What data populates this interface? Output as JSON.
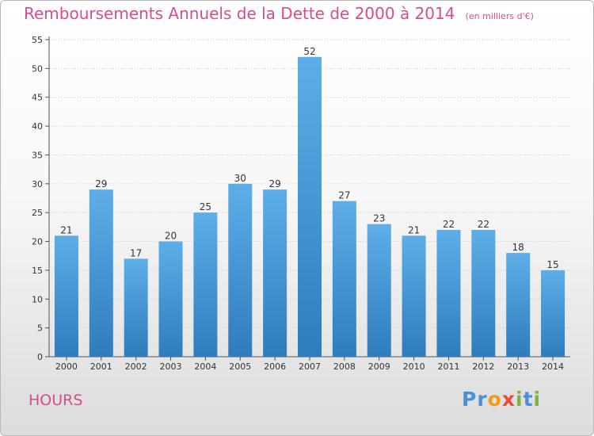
{
  "header": {
    "title": "Remboursements Annuels de la Dette de 2000 à 2014",
    "unit_note": "(en milliers d'€)"
  },
  "footer": {
    "commune": "HOURS",
    "logo_text": "Proxiti",
    "logo_letters": [
      {
        "ch": "P",
        "color": "#4a90d9"
      },
      {
        "ch": "r",
        "color": "#4a90d9"
      },
      {
        "ch": "o",
        "color": "#f39c12"
      },
      {
        "ch": "x",
        "color": "#e74c3c"
      },
      {
        "ch": "i",
        "color": "#7cb342"
      },
      {
        "ch": "t",
        "color": "#4a90d9"
      },
      {
        "ch": "i",
        "color": "#7cb342"
      }
    ]
  },
  "colors": {
    "bar_top": "#5daee8",
    "bar_bottom": "#2f7cbd",
    "grid": "#cccccc",
    "axis": "#555555",
    "accent": "#d44d8d"
  },
  "chart_data": {
    "type": "bar",
    "title": "Remboursements Annuels de la Dette de 2000 à 2014",
    "subtitle": "(en milliers d'€)",
    "categories": [
      "2000",
      "2001",
      "2002",
      "2003",
      "2004",
      "2005",
      "2006",
      "2007",
      "2008",
      "2009",
      "2010",
      "2011",
      "2012",
      "2013",
      "2014"
    ],
    "values": [
      21,
      29,
      17,
      20,
      25,
      30,
      29,
      52,
      27,
      23,
      21,
      22,
      22,
      18,
      15
    ],
    "ylim": [
      0,
      55
    ],
    "yticks": [
      0,
      5,
      10,
      15,
      20,
      25,
      30,
      35,
      40,
      45,
      50,
      55
    ],
    "grid": true,
    "legend": "none"
  }
}
